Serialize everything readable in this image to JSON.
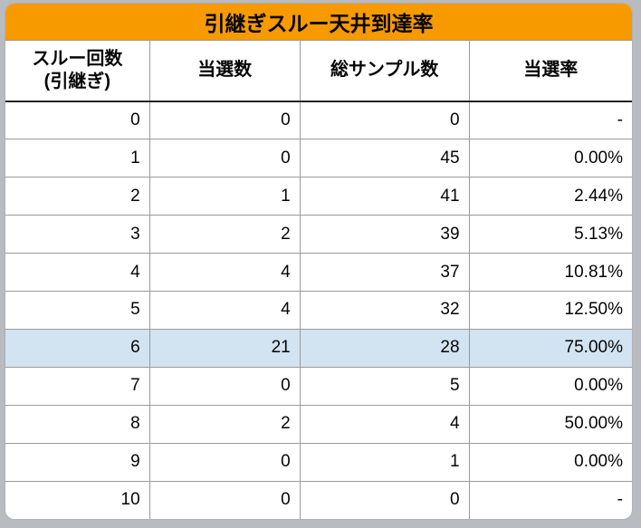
{
  "title": "引継ぎスルー天井到達率",
  "columns": [
    "スルー回数\n(引継ぎ)",
    "当選数",
    "総サンプル数",
    "当選率"
  ],
  "column_widths_pct": [
    23,
    24,
    27,
    26
  ],
  "column_align": [
    "right",
    "right",
    "right",
    "right"
  ],
  "rows": [
    [
      "0",
      "0",
      "0",
      "-"
    ],
    [
      "1",
      "0",
      "45",
      "0.00%"
    ],
    [
      "2",
      "1",
      "41",
      "2.44%"
    ],
    [
      "3",
      "2",
      "39",
      "5.13%"
    ],
    [
      "4",
      "4",
      "37",
      "10.81%"
    ],
    [
      "5",
      "4",
      "32",
      "12.50%"
    ],
    [
      "6",
      "21",
      "28",
      "75.00%"
    ],
    [
      "7",
      "0",
      "5",
      "0.00%"
    ],
    [
      "8",
      "2",
      "4",
      "50.00%"
    ],
    [
      "9",
      "0",
      "1",
      "0.00%"
    ],
    [
      "10",
      "0",
      "0",
      "-"
    ]
  ],
  "highlight_row_index": 6,
  "colors": {
    "title_bg": "#f69a00",
    "highlight_bg": "#d2e3f1",
    "text": "#060606",
    "border": "#9a9a9a",
    "page_bg": "#b8bcc0",
    "card_bg": "#ffffff"
  },
  "font_sizes_pt": {
    "title": 17,
    "header": 15,
    "body": 14
  }
}
